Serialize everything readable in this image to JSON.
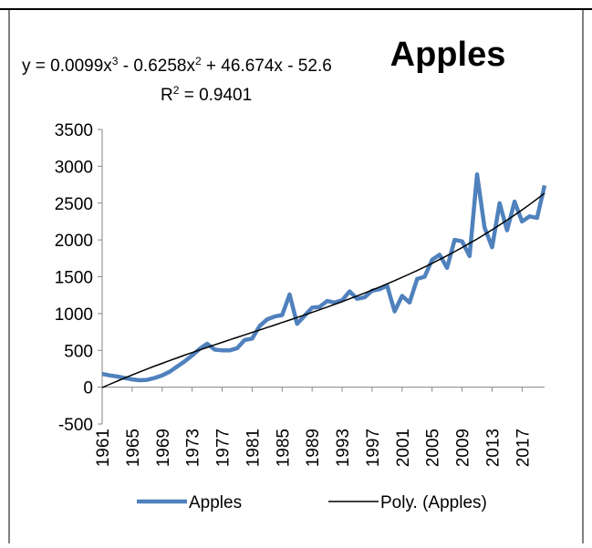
{
  "chart_data": {
    "type": "line",
    "title": "Apples",
    "trendline_equation": [
      "y = 0.0099x",
      "3",
      " - 0.6258x",
      "2",
      " + 46.674x - 52.6"
    ],
    "trendline_r2": [
      "R",
      "2",
      " = 0.9401"
    ],
    "categories": [
      "1961",
      null,
      null,
      null,
      "1965",
      null,
      null,
      null,
      "1969",
      null,
      null,
      null,
      "1973",
      null,
      null,
      null,
      "1977",
      null,
      null,
      null,
      "1981",
      null,
      null,
      null,
      "1985",
      null,
      null,
      null,
      "1989",
      null,
      null,
      null,
      "1993",
      null,
      null,
      null,
      "1997",
      null,
      null,
      null,
      "2001",
      null,
      null,
      null,
      "2005",
      null,
      null,
      null,
      "2009",
      null,
      null,
      null,
      "2013",
      null,
      null,
      null,
      "2017",
      null,
      null,
      null
    ],
    "series": [
      {
        "name": "Apples",
        "color": "#4f81bd",
        "values": [
          180,
          160,
          145,
          125,
          105,
          95,
          100,
          125,
          160,
          210,
          280,
          350,
          430,
          520,
          590,
          510,
          500,
          500,
          530,
          640,
          660,
          830,
          920,
          960,
          980,
          1260,
          860,
          970,
          1080,
          1090,
          1170,
          1150,
          1180,
          1300,
          1200,
          1220,
          1310,
          1330,
          1380,
          1030,
          1240,
          1150,
          1470,
          1500,
          1730,
          1800,
          1620,
          2000,
          1980,
          1780,
          2890,
          2170,
          1900,
          2500,
          2130,
          2520,
          2250,
          2320,
          2300,
          2740
        ]
      },
      {
        "name": "Poly. (Apples)",
        "color": "#000000",
        "values": [
          -6.5,
          38.3,
          82.1,
          124.7,
          166.4,
          207.1,
          246.9,
          285.8,
          324.0,
          361.5,
          398.3,
          434.5,
          470.2,
          505.3,
          540.1,
          574.5,
          608.6,
          642.5,
          676.2,
          709.8,
          743.3,
          776.8,
          810.3,
          844.0,
          877.8,
          911.9,
          946.3,
          981.0,
          1016.1,
          1051.7,
          1087.8,
          1124.6,
          1161.9,
          1200.0,
          1238.8,
          1278.5,
          1319.1,
          1360.6,
          1403.1,
          1446.7,
          1491.4,
          1537.3,
          1584.4,
          1632.8,
          1682.6,
          1733.8,
          1786.5,
          1840.8,
          1896.6,
          1954.1,
          2013.3,
          2074.3,
          2137.2,
          2202.0,
          2268.7,
          2337.4,
          2408.3,
          2481.3,
          2556.5,
          2633.4
        ]
      }
    ],
    "ylim": [
      -500,
      3500
    ],
    "yticks": [
      -500,
      0,
      500,
      1000,
      1500,
      2000,
      2500,
      3000,
      3500
    ],
    "grid": false,
    "legend": "bottom"
  }
}
